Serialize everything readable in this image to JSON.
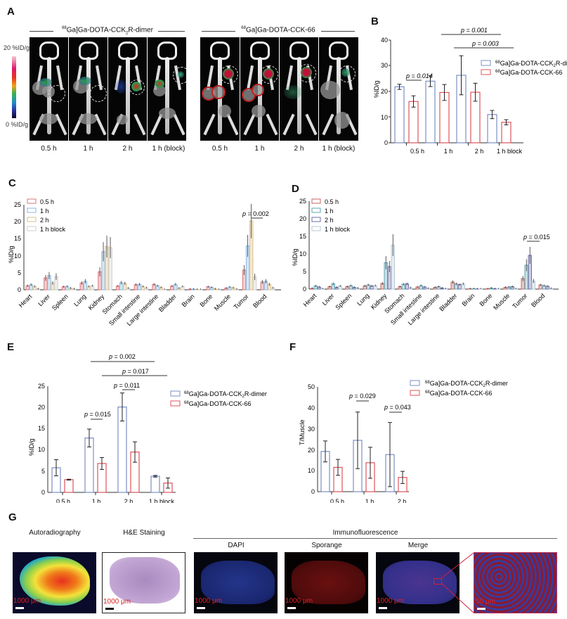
{
  "panels": {
    "A": {
      "label": "A",
      "colorbar": {
        "max": "20 %ID/g",
        "min": "0 %ID/g"
      },
      "groups": [
        {
          "title": "[68Ga]Ga-DOTA-CCK2R-dimer",
          "times": [
            "0.5 h",
            "1 h",
            "2 h",
            "1 h (block)"
          ]
        },
        {
          "title": "[68Ga]Ga-DOTA-CCK-66",
          "times": [
            "0.5 h",
            "1 h",
            "2 h",
            "1 h (block)"
          ]
        }
      ]
    },
    "B": {
      "label": "B"
    },
    "C": {
      "label": "C"
    },
    "D": {
      "label": "D"
    },
    "E": {
      "label": "E"
    },
    "F": {
      "label": "F"
    },
    "G": {
      "label": "G",
      "titles": {
        "autoradiography": "Autoradiography",
        "he": "H&E Staining",
        "immuno": "Immunofluorescence",
        "dapi": "DAPI",
        "sporange": "Sporange",
        "merge": "Merge"
      },
      "scalebars": {
        "large": "1000 μm",
        "zoom": "50 μm"
      }
    }
  },
  "colors": {
    "dimer": "#7b8fc4",
    "cck66": "#e0545a",
    "c_05": "#d9767a",
    "c_1": "#8fb6dc",
    "c_2": "#d8bf8a",
    "c_block": "#e8e8e8",
    "d_05": "#c7635f",
    "d_1": "#5fa7b8",
    "d_2": "#6f6fa8",
    "d_block": "#dde7ee"
  },
  "chart_data": [
    {
      "id": "B",
      "type": "bar",
      "title": "",
      "xlabel": "",
      "ylabel": "%ID/g",
      "ylim": [
        0,
        40
      ],
      "yticks": [
        0,
        10,
        20,
        30,
        40
      ],
      "categories": [
        "0.5 h",
        "1 h",
        "2 h",
        "1 h block"
      ],
      "series": [
        {
          "name": "[68Ga]Ga-DOTA-CCK2R-dimer",
          "values": [
            21.8,
            24.0,
            26.3,
            11.0
          ],
          "err": [
            1.0,
            2.1,
            7.6,
            1.6
          ]
        },
        {
          "name": "[68Ga]Ga-DOTA-CCK-66",
          "values": [
            16.1,
            19.6,
            19.7,
            8.0
          ],
          "err": [
            2.2,
            3.1,
            3.5,
            1.0
          ]
        }
      ],
      "annotations": [
        "p = 0.014",
        "p = 0.001",
        "p = 0.003"
      ],
      "legend_position": "upper right"
    },
    {
      "id": "C",
      "type": "bar",
      "title": "",
      "xlabel": "",
      "ylabel": "%ID/g",
      "ylim": [
        0,
        25
      ],
      "yticks": [
        0,
        5,
        10,
        15,
        20,
        25
      ],
      "categories": [
        "Heart",
        "Liver",
        "Spleen",
        "Lung",
        "Kidney",
        "Stomach",
        "Small intestine",
        "Large intestine",
        "Bladder",
        "Brain",
        "Bone",
        "Muscle",
        "Tumor",
        "Blood"
      ],
      "series": [
        {
          "name": "0.5 h",
          "values": [
            1.2,
            3.5,
            0.9,
            2.0,
            5.3,
            1.1,
            1.5,
            1.6,
            1.1,
            0.2,
            0.9,
            0.5,
            5.8,
            2.3
          ]
        },
        {
          "name": "1 h",
          "values": [
            1.5,
            4.2,
            1.0,
            2.5,
            11.2,
            2.1,
            1.6,
            1.2,
            1.6,
            0.2,
            0.7,
            0.8,
            12.9,
            2.5
          ]
        },
        {
          "name": "2 h",
          "values": [
            1.0,
            2.0,
            0.5,
            1.0,
            12.7,
            1.9,
            1.0,
            0.7,
            0.5,
            0.1,
            0.3,
            0.6,
            20.2,
            1.6
          ]
        },
        {
          "name": "1 h block",
          "values": [
            0.3,
            3.9,
            0.3,
            1.2,
            12.4,
            0.5,
            0.6,
            0.1,
            1.0,
            0.1,
            0.1,
            0.2,
            3.8,
            0.6
          ]
        }
      ],
      "annotations": [
        "p = 0.002"
      ],
      "legend_position": "upper left"
    },
    {
      "id": "D",
      "type": "bar",
      "title": "",
      "xlabel": "",
      "ylabel": "%ID/g",
      "ylim": [
        0,
        25
      ],
      "yticks": [
        0,
        5,
        10,
        15,
        20,
        25
      ],
      "categories": [
        "Heart",
        "Liver",
        "Spleen",
        "Lung",
        "Kidney",
        "Stomach",
        "Small intestine",
        "Large intestine",
        "Bladder",
        "Brain",
        "Bone",
        "Muscle",
        "Tumor",
        "Blood"
      ],
      "series": [
        {
          "name": "0.5 h",
          "values": [
            0.2,
            0.7,
            0.7,
            0.9,
            1.6,
            0.7,
            0.6,
            0.5,
            2.0,
            0.1,
            0.1,
            0.5,
            3.0,
            1.2
          ]
        },
        {
          "name": "1 h",
          "values": [
            0.9,
            1.5,
            1.0,
            1.2,
            7.5,
            1.4,
            1.0,
            0.7,
            1.5,
            0.1,
            0.3,
            0.6,
            6.8,
            1.0
          ]
        },
        {
          "name": "2 h",
          "values": [
            0.6,
            0.5,
            0.5,
            0.9,
            6.4,
            1.5,
            0.6,
            0.3,
            1.3,
            0.05,
            0.1,
            0.7,
            9.6,
            0.8
          ]
        },
        {
          "name": "1 h block",
          "values": [
            0.1,
            0.9,
            0.3,
            1.0,
            12.5,
            0.4,
            0.2,
            0.1,
            1.5,
            0.05,
            0.05,
            0.1,
            2.3,
            0.2
          ]
        }
      ],
      "annotations": [
        "p = 0.015"
      ],
      "legend_position": "upper left"
    },
    {
      "id": "E",
      "type": "bar",
      "title": "",
      "xlabel": "",
      "ylabel": "%ID/g",
      "ylim": [
        0,
        25
      ],
      "yticks": [
        0,
        5,
        10,
        15,
        20,
        25
      ],
      "categories": [
        "0.5 h",
        "1 h",
        "2 h",
        "1 h block"
      ],
      "series": [
        {
          "name": "[68Ga]Ga-DOTA-CCK2R-dimer",
          "values": [
            5.8,
            12.8,
            20.1,
            3.8
          ],
          "err": [
            1.9,
            2.1,
            3.3,
            0.2
          ]
        },
        {
          "name": "[68Ga]Ga-DOTA-CCK-66",
          "values": [
            3.0,
            6.8,
            9.5,
            2.2
          ],
          "err": [
            0.1,
            1.4,
            2.4,
            1.2
          ]
        }
      ],
      "annotations": [
        "p = 0.015",
        "p = 0.011",
        "p = 0.017",
        "p = 0.002"
      ],
      "legend_position": "upper right"
    },
    {
      "id": "F",
      "type": "bar",
      "title": "",
      "xlabel": "",
      "ylabel": "T/Muscle",
      "ylim": [
        0,
        50
      ],
      "yticks": [
        0,
        10,
        20,
        30,
        40,
        50
      ],
      "categories": [
        "0.5 h",
        "1 h",
        "2 h"
      ],
      "series": [
        {
          "name": "[68Ga]Ga-DOTA-CCK2R-dimer",
          "values": [
            19.2,
            24.5,
            17.7
          ],
          "err": [
            5.0,
            13.5,
            15.3
          ]
        },
        {
          "name": "[68Ga]Ga-DOTA-CCK-66",
          "values": [
            11.6,
            13.8,
            6.8
          ],
          "err": [
            3.8,
            7.4,
            2.9
          ]
        }
      ],
      "annotations": [
        "p = 0.029",
        "p = 0.043"
      ],
      "legend_position": "upper right"
    }
  ]
}
